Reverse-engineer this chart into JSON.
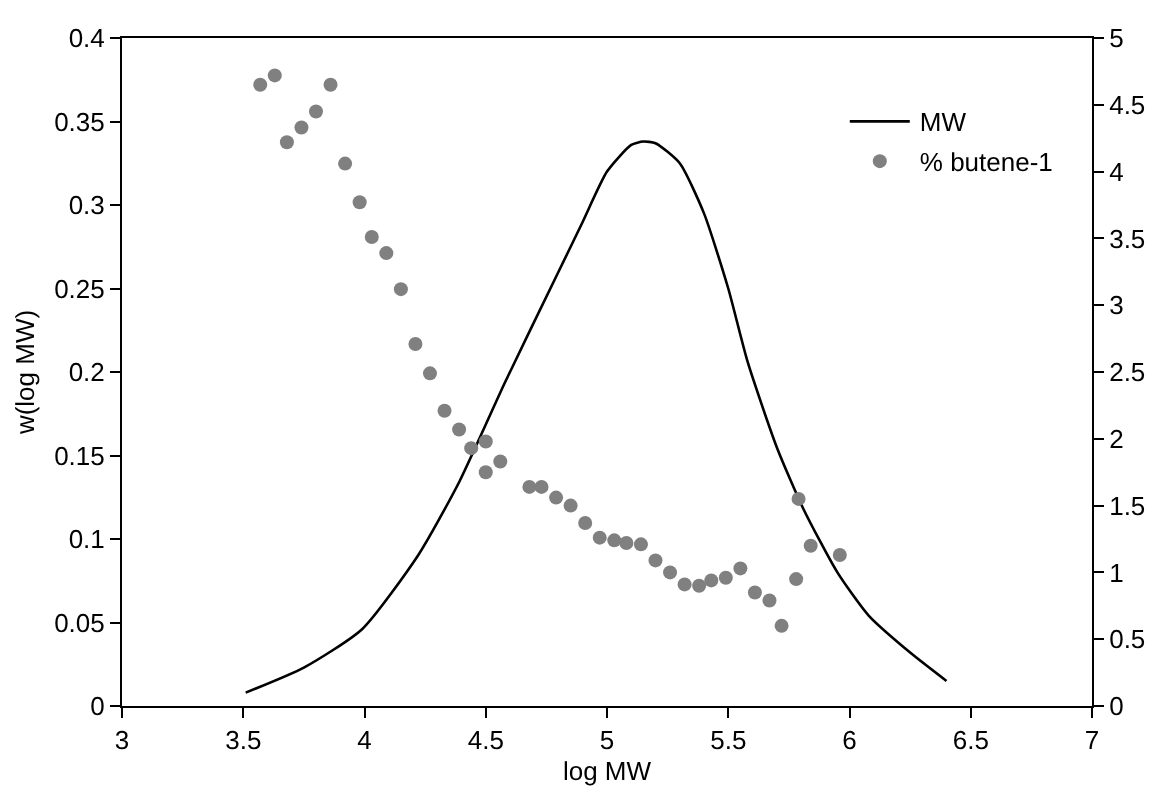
{
  "chart_data": {
    "type": "line",
    "xlabel": "log MW",
    "ylabel": "w(log MW)",
    "xlim": [
      3,
      7
    ],
    "xticks": [
      3,
      3.5,
      4,
      4.5,
      5,
      5.5,
      6,
      6.5,
      7
    ],
    "ylim": [
      0,
      0.4
    ],
    "yticks": [
      0,
      0.05,
      0.1,
      0.15,
      0.2,
      0.25,
      0.3,
      0.35,
      0.4
    ],
    "y2lim": [
      0,
      5
    ],
    "y2ticks": [
      0,
      0.5,
      1,
      1.5,
      2,
      2.5,
      3,
      3.5,
      4,
      4.5,
      5
    ],
    "legend": "top right",
    "series": [
      {
        "name": "MW",
        "color": "#000000",
        "marker": "none",
        "line_style": "solid",
        "x": [
          3.51,
          3.75,
          3.99,
          4.22,
          4.39,
          4.58,
          4.8,
          4.9,
          5.0,
          5.1,
          5.15,
          5.2,
          5.3,
          5.4,
          5.5,
          5.58,
          5.7,
          5.81,
          5.95,
          6.08,
          6.25,
          6.4
        ],
        "values": [
          0.008,
          0.023,
          0.046,
          0.09,
          0.134,
          0.194,
          0.26,
          0.29,
          0.32,
          0.336,
          0.338,
          0.337,
          0.325,
          0.295,
          0.25,
          0.206,
          0.155,
          0.118,
          0.08,
          0.054,
          0.032,
          0.015
        ]
      },
      {
        "name": "% butene-1",
        "type": "scatter",
        "axis": "y2",
        "color": "#808080",
        "marker": "circle",
        "x": [
          3.57,
          3.63,
          3.68,
          3.74,
          3.8,
          3.86,
          3.92,
          3.98,
          4.03,
          4.09,
          4.15,
          4.21,
          4.27,
          4.33,
          4.39,
          4.44,
          4.5,
          4.5,
          4.56,
          4.68,
          4.73,
          4.79,
          4.85,
          4.91,
          4.97,
          5.03,
          5.08,
          5.14,
          5.2,
          5.26,
          5.32,
          5.38,
          5.43,
          5.49,
          5.55,
          5.61,
          5.67,
          5.72,
          5.78,
          5.79,
          5.84,
          5.96
        ],
        "values": [
          4.65,
          4.72,
          4.22,
          4.33,
          4.45,
          4.65,
          4.06,
          3.77,
          3.51,
          3.39,
          3.12,
          2.71,
          2.49,
          2.21,
          2.07,
          1.93,
          1.98,
          1.75,
          1.83,
          1.64,
          1.64,
          1.56,
          1.5,
          1.37,
          1.26,
          1.24,
          1.22,
          1.21,
          1.09,
          1.0,
          0.91,
          0.9,
          0.94,
          0.96,
          1.03,
          0.85,
          0.79,
          0.6,
          0.95,
          1.55,
          1.2,
          1.13
        ]
      }
    ]
  }
}
